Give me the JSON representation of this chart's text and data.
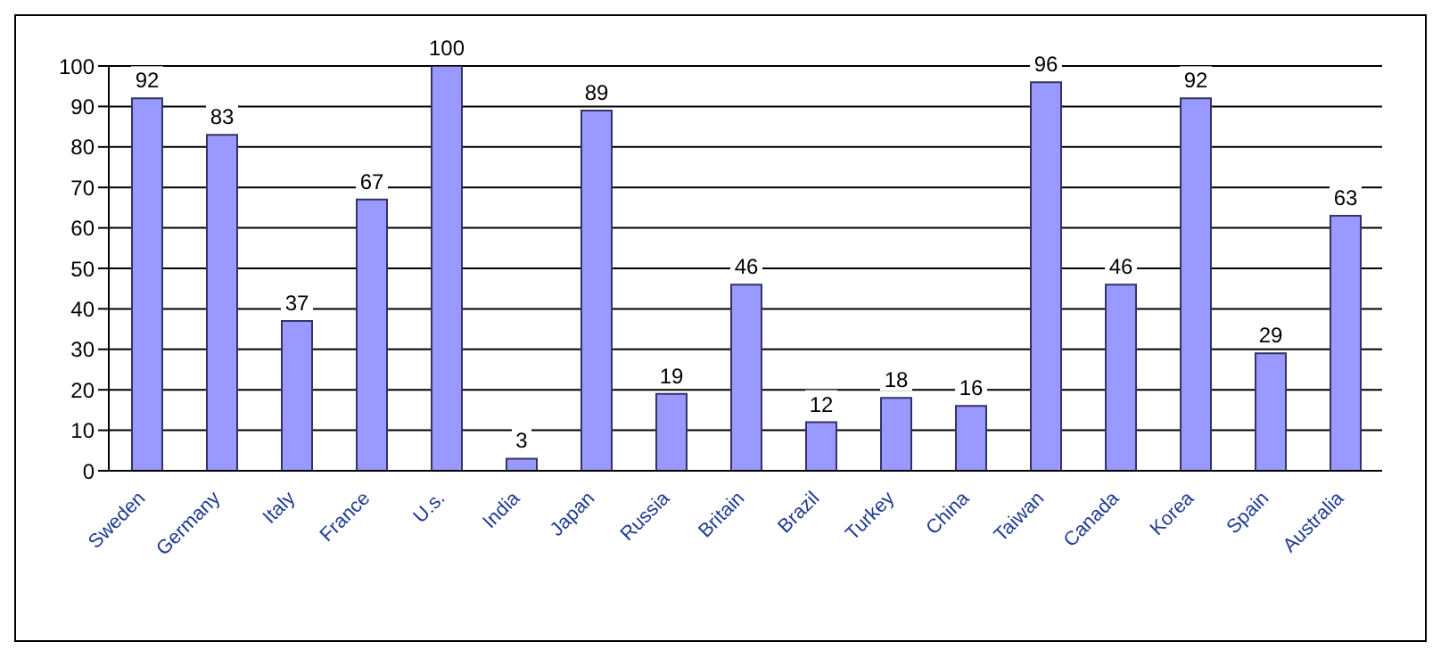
{
  "chart_data": {
    "type": "bar",
    "categories": [
      "Sweden",
      "Germany",
      "Italy",
      "France",
      "U.s.",
      "India",
      "Japan",
      "Russia",
      "Britain",
      "Brazil",
      "Turkey",
      "China",
      "Taiwan",
      "Canada",
      "Korea",
      "Spain",
      "Australia"
    ],
    "values": [
      92,
      83,
      37,
      67,
      100,
      3,
      89,
      19,
      46,
      12,
      18,
      16,
      96,
      46,
      92,
      29,
      63
    ],
    "color": "#9999ff",
    "ylim": [
      0,
      100
    ],
    "yticks": [
      0,
      10,
      20,
      30,
      40,
      50,
      60,
      70,
      80,
      90,
      100
    ],
    "grid": "y",
    "data_labels": true
  }
}
